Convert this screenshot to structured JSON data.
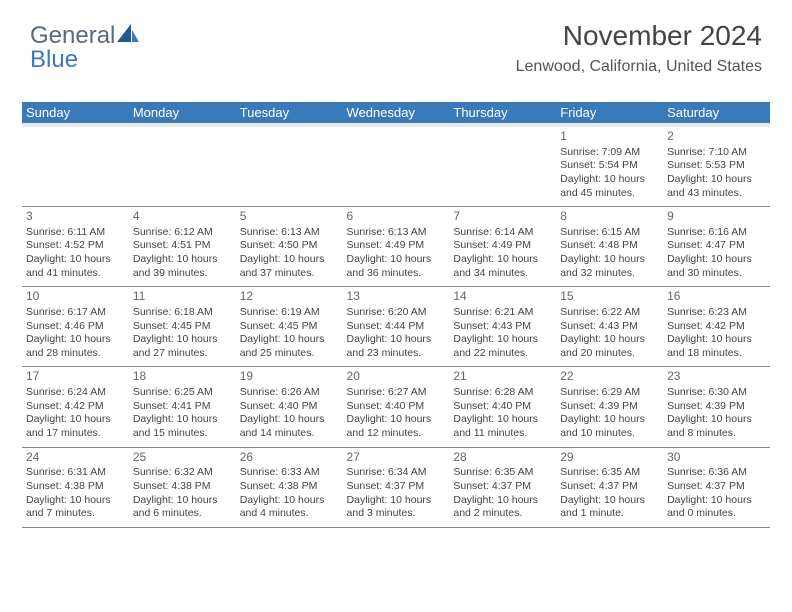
{
  "logo": {
    "part1": "General",
    "part2": "Blue"
  },
  "header": {
    "month_year": "November 2024",
    "location": "Lenwood, California, United States"
  },
  "weekday_labels": [
    "Sunday",
    "Monday",
    "Tuesday",
    "Wednesday",
    "Thursday",
    "Friday",
    "Saturday"
  ],
  "colors": {
    "header_bg": "#3a7ab8",
    "header_fg": "#ffffff",
    "spacer_bg": "#e8e8e8",
    "cell_border": "#888888",
    "text": "#444444",
    "logo_gray": "#5a6a7a",
    "logo_blue": "#3a7ab8"
  },
  "cell_style": {
    "day_num_fontsize": 12,
    "info_fontsize": 10.5,
    "header_fontsize": 13,
    "title_fontsize": 28,
    "location_fontsize": 16
  },
  "weeks": [
    [
      null,
      null,
      null,
      null,
      null,
      {
        "num": "1",
        "sunrise": "Sunrise: 7:09 AM",
        "sunset": "Sunset: 5:54 PM",
        "daylight": "Daylight: 10 hours and 45 minutes."
      },
      {
        "num": "2",
        "sunrise": "Sunrise: 7:10 AM",
        "sunset": "Sunset: 5:53 PM",
        "daylight": "Daylight: 10 hours and 43 minutes."
      }
    ],
    [
      {
        "num": "3",
        "sunrise": "Sunrise: 6:11 AM",
        "sunset": "Sunset: 4:52 PM",
        "daylight": "Daylight: 10 hours and 41 minutes."
      },
      {
        "num": "4",
        "sunrise": "Sunrise: 6:12 AM",
        "sunset": "Sunset: 4:51 PM",
        "daylight": "Daylight: 10 hours and 39 minutes."
      },
      {
        "num": "5",
        "sunrise": "Sunrise: 6:13 AM",
        "sunset": "Sunset: 4:50 PM",
        "daylight": "Daylight: 10 hours and 37 minutes."
      },
      {
        "num": "6",
        "sunrise": "Sunrise: 6:13 AM",
        "sunset": "Sunset: 4:49 PM",
        "daylight": "Daylight: 10 hours and 36 minutes."
      },
      {
        "num": "7",
        "sunrise": "Sunrise: 6:14 AM",
        "sunset": "Sunset: 4:49 PM",
        "daylight": "Daylight: 10 hours and 34 minutes."
      },
      {
        "num": "8",
        "sunrise": "Sunrise: 6:15 AM",
        "sunset": "Sunset: 4:48 PM",
        "daylight": "Daylight: 10 hours and 32 minutes."
      },
      {
        "num": "9",
        "sunrise": "Sunrise: 6:16 AM",
        "sunset": "Sunset: 4:47 PM",
        "daylight": "Daylight: 10 hours and 30 minutes."
      }
    ],
    [
      {
        "num": "10",
        "sunrise": "Sunrise: 6:17 AM",
        "sunset": "Sunset: 4:46 PM",
        "daylight": "Daylight: 10 hours and 28 minutes."
      },
      {
        "num": "11",
        "sunrise": "Sunrise: 6:18 AM",
        "sunset": "Sunset: 4:45 PM",
        "daylight": "Daylight: 10 hours and 27 minutes."
      },
      {
        "num": "12",
        "sunrise": "Sunrise: 6:19 AM",
        "sunset": "Sunset: 4:45 PM",
        "daylight": "Daylight: 10 hours and 25 minutes."
      },
      {
        "num": "13",
        "sunrise": "Sunrise: 6:20 AM",
        "sunset": "Sunset: 4:44 PM",
        "daylight": "Daylight: 10 hours and 23 minutes."
      },
      {
        "num": "14",
        "sunrise": "Sunrise: 6:21 AM",
        "sunset": "Sunset: 4:43 PM",
        "daylight": "Daylight: 10 hours and 22 minutes."
      },
      {
        "num": "15",
        "sunrise": "Sunrise: 6:22 AM",
        "sunset": "Sunset: 4:43 PM",
        "daylight": "Daylight: 10 hours and 20 minutes."
      },
      {
        "num": "16",
        "sunrise": "Sunrise: 6:23 AM",
        "sunset": "Sunset: 4:42 PM",
        "daylight": "Daylight: 10 hours and 18 minutes."
      }
    ],
    [
      {
        "num": "17",
        "sunrise": "Sunrise: 6:24 AM",
        "sunset": "Sunset: 4:42 PM",
        "daylight": "Daylight: 10 hours and 17 minutes."
      },
      {
        "num": "18",
        "sunrise": "Sunrise: 6:25 AM",
        "sunset": "Sunset: 4:41 PM",
        "daylight": "Daylight: 10 hours and 15 minutes."
      },
      {
        "num": "19",
        "sunrise": "Sunrise: 6:26 AM",
        "sunset": "Sunset: 4:40 PM",
        "daylight": "Daylight: 10 hours and 14 minutes."
      },
      {
        "num": "20",
        "sunrise": "Sunrise: 6:27 AM",
        "sunset": "Sunset: 4:40 PM",
        "daylight": "Daylight: 10 hours and 12 minutes."
      },
      {
        "num": "21",
        "sunrise": "Sunrise: 6:28 AM",
        "sunset": "Sunset: 4:40 PM",
        "daylight": "Daylight: 10 hours and 11 minutes."
      },
      {
        "num": "22",
        "sunrise": "Sunrise: 6:29 AM",
        "sunset": "Sunset: 4:39 PM",
        "daylight": "Daylight: 10 hours and 10 minutes."
      },
      {
        "num": "23",
        "sunrise": "Sunrise: 6:30 AM",
        "sunset": "Sunset: 4:39 PM",
        "daylight": "Daylight: 10 hours and 8 minutes."
      }
    ],
    [
      {
        "num": "24",
        "sunrise": "Sunrise: 6:31 AM",
        "sunset": "Sunset: 4:38 PM",
        "daylight": "Daylight: 10 hours and 7 minutes."
      },
      {
        "num": "25",
        "sunrise": "Sunrise: 6:32 AM",
        "sunset": "Sunset: 4:38 PM",
        "daylight": "Daylight: 10 hours and 6 minutes."
      },
      {
        "num": "26",
        "sunrise": "Sunrise: 6:33 AM",
        "sunset": "Sunset: 4:38 PM",
        "daylight": "Daylight: 10 hours and 4 minutes."
      },
      {
        "num": "27",
        "sunrise": "Sunrise: 6:34 AM",
        "sunset": "Sunset: 4:37 PM",
        "daylight": "Daylight: 10 hours and 3 minutes."
      },
      {
        "num": "28",
        "sunrise": "Sunrise: 6:35 AM",
        "sunset": "Sunset: 4:37 PM",
        "daylight": "Daylight: 10 hours and 2 minutes."
      },
      {
        "num": "29",
        "sunrise": "Sunrise: 6:35 AM",
        "sunset": "Sunset: 4:37 PM",
        "daylight": "Daylight: 10 hours and 1 minute."
      },
      {
        "num": "30",
        "sunrise": "Sunrise: 6:36 AM",
        "sunset": "Sunset: 4:37 PM",
        "daylight": "Daylight: 10 hours and 0 minutes."
      }
    ]
  ]
}
